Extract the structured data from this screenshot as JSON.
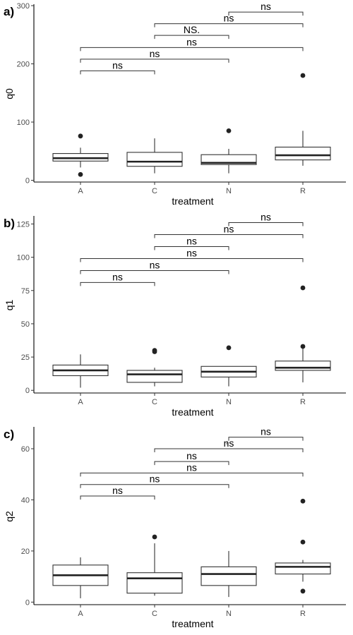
{
  "chart_data": [
    {
      "type": "box",
      "panel_label": "a)",
      "xlabel": "treatment",
      "ylabel": "q0",
      "categories": [
        "A",
        "C",
        "N",
        "R"
      ],
      "ylim": [
        -3,
        300
      ],
      "yticks": [
        0,
        100,
        200,
        300
      ],
      "boxes": [
        {
          "q1": 33,
          "median": 38,
          "q3": 46,
          "min": 22,
          "max": 56,
          "outliers": [
            76,
            10
          ]
        },
        {
          "q1": 24,
          "median": 32,
          "q3": 48,
          "min": 12,
          "max": 72,
          "outliers": []
        },
        {
          "q1": 27,
          "median": 30,
          "q3": 44,
          "min": 12,
          "max": 54,
          "outliers": [
            85
          ]
        },
        {
          "q1": 35,
          "median": 43,
          "q3": 57,
          "min": 25,
          "max": 85,
          "outliers": [
            180
          ]
        }
      ],
      "comparisons": [
        {
          "from": "A",
          "to": "C",
          "label": "ns",
          "y": 188
        },
        {
          "from": "A",
          "to": "N",
          "label": "ns",
          "y": 208
        },
        {
          "from": "A",
          "to": "R",
          "label": "ns",
          "y": 228
        },
        {
          "from": "C",
          "to": "N",
          "label": "NS.",
          "y": 249
        },
        {
          "from": "C",
          "to": "R",
          "label": "ns",
          "y": 269
        },
        {
          "from": "N",
          "to": "R",
          "label": "ns",
          "y": 289
        }
      ]
    },
    {
      "type": "box",
      "panel_label": "b)",
      "xlabel": "treatment",
      "ylabel": "q1",
      "categories": [
        "A",
        "C",
        "N",
        "R"
      ],
      "ylim": [
        -2,
        130
      ],
      "yticks": [
        0,
        25,
        50,
        75,
        100,
        125
      ],
      "boxes": [
        {
          "q1": 11,
          "median": 15,
          "q3": 19,
          "min": 2,
          "max": 27,
          "outliers": []
        },
        {
          "q1": 6,
          "median": 12,
          "q3": 15,
          "min": 3,
          "max": 17,
          "outliers": [
            30,
            29
          ]
        },
        {
          "q1": 10,
          "median": 14,
          "q3": 18,
          "min": 3,
          "max": 18,
          "outliers": [
            32
          ]
        },
        {
          "q1": 15,
          "median": 17,
          "q3": 22,
          "min": 6,
          "max": 33,
          "outliers": [
            77,
            33
          ]
        }
      ],
      "comparisons": [
        {
          "from": "A",
          "to": "C",
          "label": "ns",
          "y": 81
        },
        {
          "from": "A",
          "to": "N",
          "label": "ns",
          "y": 90
        },
        {
          "from": "A",
          "to": "R",
          "label": "ns",
          "y": 99
        },
        {
          "from": "C",
          "to": "N",
          "label": "ns",
          "y": 108
        },
        {
          "from": "C",
          "to": "R",
          "label": "ns",
          "y": 117
        },
        {
          "from": "N",
          "to": "R",
          "label": "ns",
          "y": 126
        }
      ]
    },
    {
      "type": "box",
      "panel_label": "c)",
      "xlabel": "treatment",
      "ylabel": "q2",
      "categories": [
        "A",
        "C",
        "N",
        "R"
      ],
      "ylim": [
        -1,
        68
      ],
      "yticks": [
        0,
        20,
        40,
        60
      ],
      "boxes": [
        {
          "q1": 6.5,
          "median": 10.5,
          "q3": 14.5,
          "min": 1.5,
          "max": 17.5,
          "outliers": []
        },
        {
          "q1": 3.5,
          "median": 9.3,
          "q3": 11.5,
          "min": 2.5,
          "max": 23,
          "outliers": [
            25.5
          ]
        },
        {
          "q1": 6.5,
          "median": 11,
          "q3": 13.8,
          "min": 2,
          "max": 20,
          "outliers": []
        },
        {
          "q1": 11,
          "median": 13.8,
          "q3": 15.3,
          "min": 8,
          "max": 16.5,
          "outliers": [
            39.5,
            23.5,
            4.3
          ]
        }
      ],
      "comparisons": [
        {
          "from": "A",
          "to": "C",
          "label": "ns",
          "y": 41.5
        },
        {
          "from": "A",
          "to": "N",
          "label": "ns",
          "y": 46
        },
        {
          "from": "A",
          "to": "R",
          "label": "ns",
          "y": 50.5
        },
        {
          "from": "C",
          "to": "N",
          "label": "ns",
          "y": 55
        },
        {
          "from": "C",
          "to": "R",
          "label": "ns",
          "y": 60
        },
        {
          "from": "N",
          "to": "R",
          "label": "ns",
          "y": 64.5
        }
      ],
      "annotations": [
        {
          "text": "*",
          "x": "N",
          "y": 62.5
        }
      ]
    }
  ]
}
